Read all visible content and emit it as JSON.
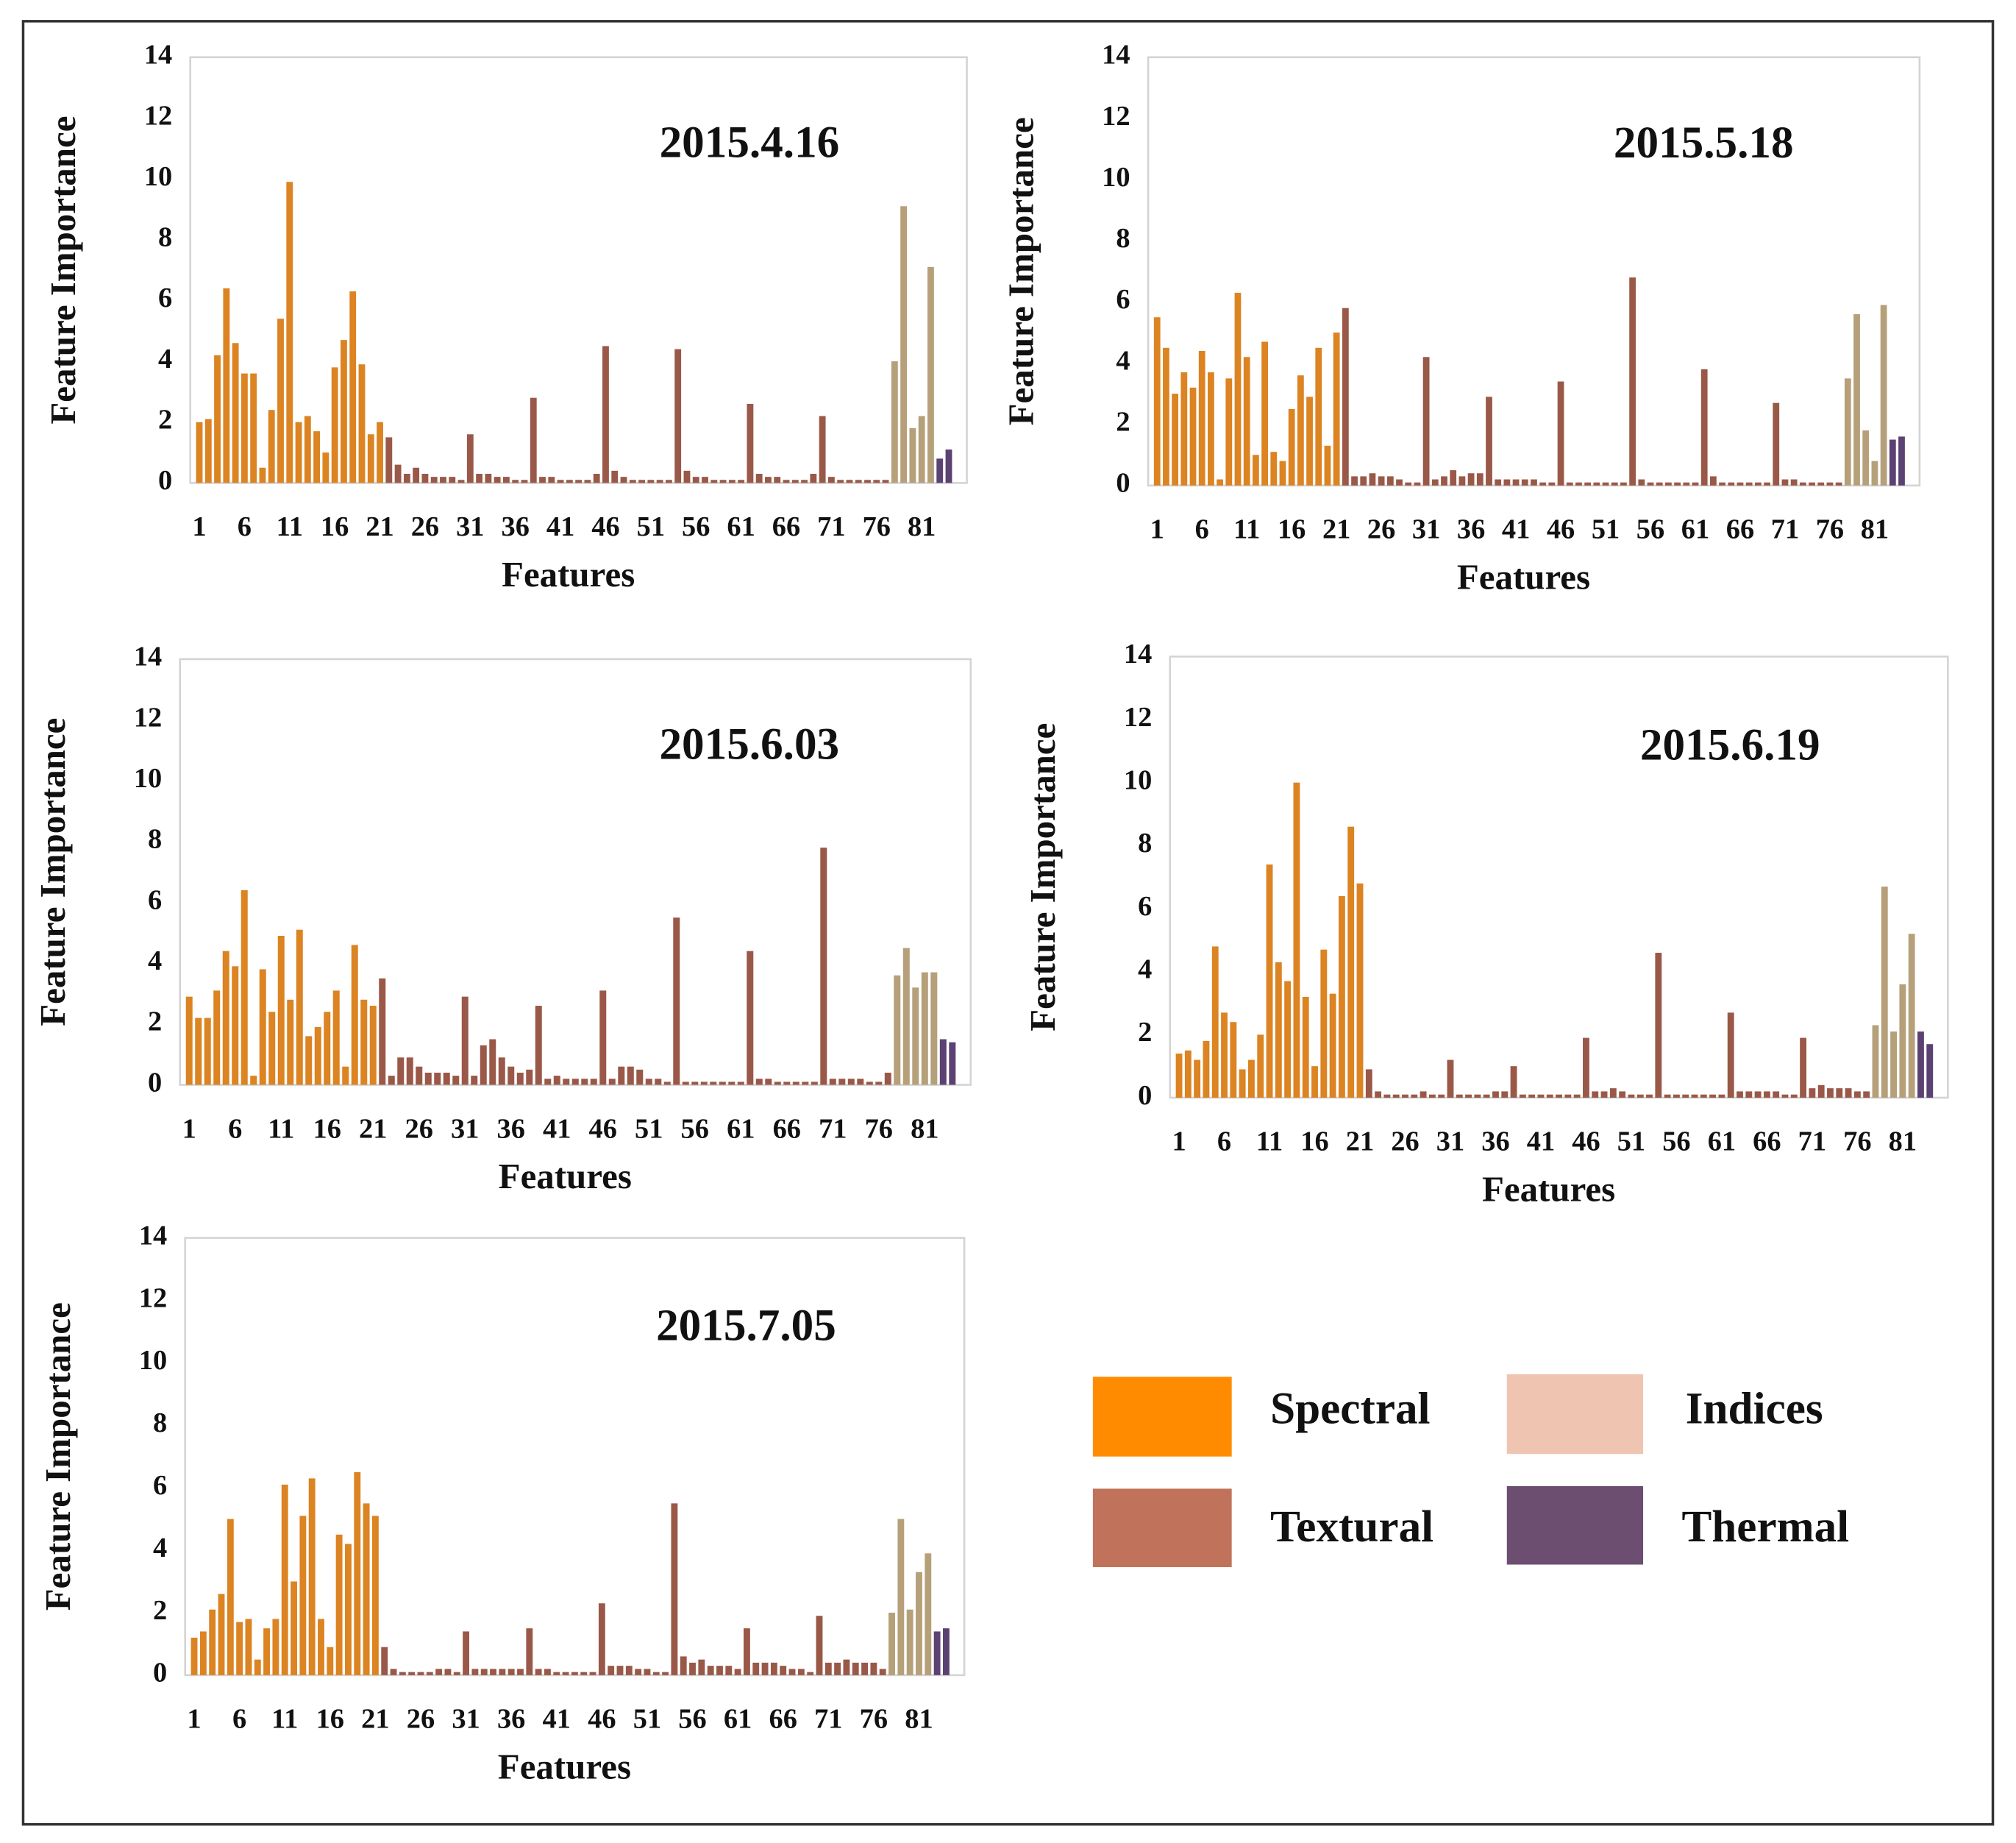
{
  "chart_data": [
    {
      "type": "bar",
      "title": "2015.4.16",
      "ylabel": "Feature Importance",
      "xlabel": "Features",
      "xlim": [
        0,
        86
      ],
      "xticks": [
        1,
        6,
        11,
        16,
        21,
        26,
        31,
        36,
        41,
        46,
        51,
        56,
        61,
        66,
        71,
        76,
        81
      ],
      "ylim": [
        0,
        14
      ],
      "yticks": [
        0,
        2,
        4,
        6,
        8,
        10,
        12,
        14
      ],
      "grid": false,
      "series": [
        {
          "color": "#dc8322",
          "x": [
            1,
            2,
            3,
            4,
            5,
            6,
            7,
            8,
            9,
            10,
            11,
            12,
            13,
            14,
            15,
            16,
            17,
            18,
            19,
            20,
            21
          ],
          "values": [
            2.0,
            2.1,
            4.2,
            6.4,
            4.6,
            3.6,
            3.6,
            0.5,
            2.4,
            5.4,
            9.9,
            2.0,
            2.2,
            1.7,
            1.0,
            3.8,
            4.7,
            6.3,
            3.9,
            1.6,
            2.0
          ]
        },
        {
          "color": "#9a5848",
          "x": [
            22,
            23,
            24,
            25,
            26,
            27,
            28,
            29,
            30,
            31,
            32,
            33,
            34,
            35,
            36,
            37,
            38,
            39,
            40,
            41,
            42,
            43,
            44,
            45,
            46,
            47,
            48,
            49,
            50,
            51,
            52,
            53,
            54,
            55,
            56,
            57,
            58,
            59,
            60,
            61,
            62,
            63,
            64,
            65,
            66,
            67,
            68,
            69,
            70,
            71,
            72,
            73,
            74,
            75,
            76,
            77
          ],
          "values": [
            1.5,
            0.6,
            0.3,
            0.5,
            0.3,
            0.2,
            0.2,
            0.2,
            0.1,
            1.6,
            0.3,
            0.3,
            0.2,
            0.2,
            0.1,
            0.1,
            2.8,
            0.2,
            0.2,
            0.1,
            0.1,
            0.1,
            0.1,
            0.3,
            4.5,
            0.4,
            0.2,
            0.1,
            0.1,
            0.1,
            0.1,
            0.1,
            4.4,
            0.4,
            0.2,
            0.2,
            0.1,
            0.1,
            0.1,
            0.1,
            2.6,
            0.3,
            0.2,
            0.2,
            0.1,
            0.1,
            0.1,
            0.3,
            2.2,
            0.2,
            0.1,
            0.1,
            0.1,
            0.1,
            0.1,
            0.1
          ]
        },
        {
          "color": "#b5a07a",
          "x": [
            78,
            79,
            80,
            81,
            82
          ],
          "values": [
            4.0,
            9.1,
            1.8,
            2.2,
            7.1
          ]
        },
        {
          "color": "#5b4272",
          "x": [
            83,
            84
          ],
          "values": [
            0.8,
            1.1
          ]
        }
      ]
    },
    {
      "type": "bar",
      "title": "2015.5.18",
      "ylabel": "Feature Importance",
      "xlabel": "Features",
      "xlim": [
        0,
        86
      ],
      "xticks": [
        1,
        6,
        11,
        16,
        21,
        26,
        31,
        36,
        41,
        46,
        51,
        56,
        61,
        66,
        71,
        76,
        81
      ],
      "ylim": [
        0,
        14
      ],
      "yticks": [
        0,
        2,
        4,
        6,
        8,
        10,
        12,
        14
      ],
      "grid": false,
      "series": [
        {
          "color": "#dc8322",
          "x": [
            1,
            2,
            3,
            4,
            5,
            6,
            7,
            8,
            9,
            10,
            11,
            12,
            13,
            14,
            15,
            16,
            17,
            18,
            19,
            20,
            21
          ],
          "values": [
            5.5,
            4.5,
            3.0,
            3.7,
            3.2,
            4.4,
            3.7,
            0.2,
            3.5,
            6.3,
            4.2,
            1.0,
            4.7,
            1.1,
            0.8,
            2.5,
            3.6,
            2.9,
            4.5,
            1.3,
            5.0
          ]
        },
        {
          "color": "#9a5848",
          "x": [
            22,
            23,
            24,
            25,
            26,
            27,
            28,
            29,
            30,
            31,
            32,
            33,
            34,
            35,
            36,
            37,
            38,
            39,
            40,
            41,
            42,
            43,
            44,
            45,
            46,
            47,
            48,
            49,
            50,
            51,
            52,
            53,
            54,
            55,
            56,
            57,
            58,
            59,
            60,
            61,
            62,
            63,
            64,
            65,
            66,
            67,
            68,
            69,
            70,
            71,
            72,
            73,
            74,
            75,
            76,
            77
          ],
          "values": [
            5.8,
            0.3,
            0.3,
            0.4,
            0.3,
            0.3,
            0.2,
            0.1,
            0.1,
            4.2,
            0.2,
            0.3,
            0.5,
            0.3,
            0.4,
            0.4,
            2.9,
            0.2,
            0.2,
            0.2,
            0.2,
            0.2,
            0.1,
            0.1,
            3.4,
            0.1,
            0.1,
            0.1,
            0.1,
            0.1,
            0.1,
            0.1,
            6.8,
            0.2,
            0.1,
            0.1,
            0.1,
            0.1,
            0.1,
            0.1,
            3.8,
            0.3,
            0.1,
            0.1,
            0.1,
            0.1,
            0.1,
            0.1,
            2.7,
            0.2,
            0.2,
            0.1,
            0.1,
            0.1,
            0.1,
            0.1
          ]
        },
        {
          "color": "#b5a07a",
          "x": [
            78,
            79,
            80,
            81,
            82
          ],
          "values": [
            3.5,
            5.6,
            1.8,
            0.8,
            5.9
          ]
        },
        {
          "color": "#5b4272",
          "x": [
            83,
            84
          ],
          "values": [
            1.5,
            1.6
          ]
        }
      ]
    },
    {
      "type": "bar",
      "title": "2015.6.03",
      "ylabel": "Feature Importance",
      "xlabel": "Features",
      "xlim": [
        0,
        86
      ],
      "xticks": [
        1,
        6,
        11,
        16,
        21,
        26,
        31,
        36,
        41,
        46,
        51,
        56,
        61,
        66,
        71,
        76,
        81
      ],
      "ylim": [
        0,
        14
      ],
      "yticks": [
        0,
        2,
        4,
        6,
        8,
        10,
        12,
        14
      ],
      "grid": false,
      "series": [
        {
          "color": "#dc8322",
          "x": [
            1,
            2,
            3,
            4,
            5,
            6,
            7,
            8,
            9,
            10,
            11,
            12,
            13,
            14,
            15,
            16,
            17,
            18,
            19,
            20,
            21
          ],
          "values": [
            2.9,
            2.2,
            2.2,
            3.1,
            4.4,
            3.9,
            6.4,
            0.3,
            3.8,
            2.4,
            4.9,
            2.8,
            5.1,
            1.6,
            1.9,
            2.4,
            3.1,
            0.6,
            4.6,
            2.8,
            2.6
          ]
        },
        {
          "color": "#9a5848",
          "x": [
            22,
            23,
            24,
            25,
            26,
            27,
            28,
            29,
            30,
            31,
            32,
            33,
            34,
            35,
            36,
            37,
            38,
            39,
            40,
            41,
            42,
            43,
            44,
            45,
            46,
            47,
            48,
            49,
            50,
            51,
            52,
            53,
            54,
            55,
            56,
            57,
            58,
            59,
            60,
            61,
            62,
            63,
            64,
            65,
            66,
            67,
            68,
            69,
            70,
            71,
            72,
            73,
            74,
            75,
            76,
            77
          ],
          "values": [
            3.5,
            0.3,
            0.9,
            0.9,
            0.6,
            0.4,
            0.4,
            0.4,
            0.3,
            2.9,
            0.3,
            1.3,
            1.5,
            0.9,
            0.6,
            0.4,
            0.5,
            2.6,
            0.2,
            0.3,
            0.2,
            0.2,
            0.2,
            0.2,
            3.1,
            0.2,
            0.6,
            0.6,
            0.5,
            0.2,
            0.2,
            0.1,
            5.5,
            0.1,
            0.1,
            0.1,
            0.1,
            0.1,
            0.1,
            0.1,
            4.4,
            0.2,
            0.2,
            0.1,
            0.1,
            0.1,
            0.1,
            0.1,
            7.8,
            0.2,
            0.2,
            0.2,
            0.2,
            0.1,
            0.1,
            0.4
          ]
        },
        {
          "color": "#b5a07a",
          "x": [
            78,
            79,
            80,
            81,
            82
          ],
          "values": [
            3.6,
            4.5,
            3.2,
            3.7,
            3.7
          ]
        },
        {
          "color": "#5b4272",
          "x": [
            83,
            84
          ],
          "values": [
            1.5,
            1.4
          ]
        }
      ]
    },
    {
      "type": "bar",
      "title": "2015.6.19",
      "ylabel": "Feature Importance",
      "xlabel": "Features",
      "xlim": [
        0,
        86
      ],
      "xticks": [
        1,
        6,
        11,
        16,
        21,
        26,
        31,
        36,
        41,
        46,
        51,
        56,
        61,
        66,
        71,
        76,
        81
      ],
      "ylim": [
        0,
        14
      ],
      "yticks": [
        0,
        2,
        4,
        6,
        8,
        10,
        12,
        14
      ],
      "grid": false,
      "series": [
        {
          "color": "#dc8322",
          "x": [
            1,
            2,
            3,
            4,
            5,
            6,
            7,
            8,
            9,
            10,
            11,
            12,
            13,
            14,
            15,
            16,
            17,
            18,
            19,
            20,
            21
          ],
          "values": [
            1.4,
            1.5,
            1.2,
            1.8,
            4.8,
            2.7,
            2.4,
            0.9,
            1.2,
            2.0,
            7.4,
            4.3,
            3.7,
            10.0,
            3.2,
            1.0,
            4.7,
            3.3,
            6.4,
            8.6,
            6.8
          ]
        },
        {
          "color": "#9a5848",
          "x": [
            22,
            23,
            24,
            25,
            26,
            27,
            28,
            29,
            30,
            31,
            32,
            33,
            34,
            35,
            36,
            37,
            38,
            39,
            40,
            41,
            42,
            43,
            44,
            45,
            46,
            47,
            48,
            49,
            50,
            51,
            52,
            53,
            54,
            55,
            56,
            57,
            58,
            59,
            60,
            61,
            62,
            63,
            64,
            65,
            66,
            67,
            68,
            69,
            70,
            71,
            72,
            73,
            74,
            75,
            76,
            77
          ],
          "values": [
            0.9,
            0.2,
            0.1,
            0.1,
            0.1,
            0.1,
            0.2,
            0.1,
            0.1,
            1.2,
            0.1,
            0.1,
            0.1,
            0.1,
            0.2,
            0.2,
            1.0,
            0.1,
            0.1,
            0.1,
            0.1,
            0.1,
            0.1,
            0.1,
            1.9,
            0.2,
            0.2,
            0.3,
            0.2,
            0.1,
            0.1,
            0.1,
            4.6,
            0.1,
            0.1,
            0.1,
            0.1,
            0.1,
            0.1,
            0.1,
            2.7,
            0.2,
            0.2,
            0.2,
            0.2,
            0.2,
            0.1,
            0.1,
            1.9,
            0.3,
            0.4,
            0.3,
            0.3,
            0.3,
            0.2,
            0.2
          ]
        },
        {
          "color": "#b5a07a",
          "x": [
            78,
            79,
            80,
            81,
            82
          ],
          "values": [
            2.3,
            6.7,
            2.1,
            3.6,
            5.2
          ]
        },
        {
          "color": "#5b4272",
          "x": [
            83,
            84
          ],
          "values": [
            2.1,
            1.7
          ]
        }
      ]
    },
    {
      "type": "bar",
      "title": "2015.7.05",
      "ylabel": "Feature Importance",
      "xlabel": "Features",
      "xlim": [
        0,
        86
      ],
      "xticks": [
        1,
        6,
        11,
        16,
        21,
        26,
        31,
        36,
        41,
        46,
        51,
        56,
        61,
        66,
        71,
        76,
        81
      ],
      "ylim": [
        0,
        14
      ],
      "yticks": [
        0,
        2,
        4,
        6,
        8,
        10,
        12,
        14
      ],
      "grid": false,
      "series": [
        {
          "color": "#dc8322",
          "x": [
            1,
            2,
            3,
            4,
            5,
            6,
            7,
            8,
            9,
            10,
            11,
            12,
            13,
            14,
            15,
            16,
            17,
            18,
            19,
            20,
            21
          ],
          "values": [
            1.2,
            1.4,
            2.1,
            2.6,
            5.0,
            1.7,
            1.8,
            0.5,
            1.5,
            1.8,
            6.1,
            3.0,
            5.1,
            6.3,
            1.8,
            0.9,
            4.5,
            4.2,
            6.5,
            5.5,
            5.1
          ]
        },
        {
          "color": "#9a5848",
          "x": [
            22,
            23,
            24,
            25,
            26,
            27,
            28,
            29,
            30,
            31,
            32,
            33,
            34,
            35,
            36,
            37,
            38,
            39,
            40,
            41,
            42,
            43,
            44,
            45,
            46,
            47,
            48,
            49,
            50,
            51,
            52,
            53,
            54,
            55,
            56,
            57,
            58,
            59,
            60,
            61,
            62,
            63,
            64,
            65,
            66,
            67,
            68,
            69,
            70,
            71,
            72,
            73,
            74,
            75,
            76,
            77
          ],
          "values": [
            0.9,
            0.2,
            0.1,
            0.1,
            0.1,
            0.1,
            0.2,
            0.2,
            0.1,
            1.4,
            0.2,
            0.2,
            0.2,
            0.2,
            0.2,
            0.2,
            1.5,
            0.2,
            0.2,
            0.1,
            0.1,
            0.1,
            0.1,
            0.1,
            2.3,
            0.3,
            0.3,
            0.3,
            0.2,
            0.2,
            0.1,
            0.1,
            5.5,
            0.6,
            0.4,
            0.5,
            0.3,
            0.3,
            0.3,
            0.2,
            1.5,
            0.4,
            0.4,
            0.4,
            0.3,
            0.2,
            0.2,
            0.1,
            1.9,
            0.4,
            0.4,
            0.5,
            0.4,
            0.4,
            0.4,
            0.2
          ]
        },
        {
          "color": "#b5a07a",
          "x": [
            78,
            79,
            80,
            81,
            82
          ],
          "values": [
            2.0,
            5.0,
            2.1,
            3.3,
            3.9
          ]
        },
        {
          "color": "#5b4272",
          "x": [
            83,
            84
          ],
          "values": [
            1.4,
            1.5
          ]
        }
      ]
    }
  ],
  "legend": {
    "items": [
      {
        "name": "Spectral",
        "color": "#ff8c00"
      },
      {
        "name": "Indices",
        "color": "#efc4b0"
      },
      {
        "name": "Textural",
        "color": "#c0735a"
      },
      {
        "name": "Thermal",
        "color": "#6b4e70"
      }
    ]
  }
}
